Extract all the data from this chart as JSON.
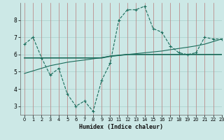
{
  "xlabel": "Humidex (Indice chaleur)",
  "background_color": "#cce8e6",
  "line_color": "#1a6b5a",
  "grid_color": "#aacfcc",
  "xlim": [
    -0.5,
    23
  ],
  "ylim": [
    2.5,
    9.0
  ],
  "xticks": [
    0,
    1,
    2,
    3,
    4,
    5,
    6,
    7,
    8,
    9,
    10,
    11,
    12,
    13,
    14,
    15,
    16,
    17,
    18,
    19,
    20,
    21,
    22,
    23
  ],
  "yticks": [
    3,
    4,
    5,
    6,
    7,
    8
  ],
  "series1_x": [
    0,
    1,
    2,
    3,
    4,
    5,
    6,
    7,
    8,
    9,
    10,
    11,
    12,
    13,
    14,
    15,
    16,
    17,
    18,
    19,
    20,
    21,
    22,
    23
  ],
  "series1_y": [
    6.6,
    7.0,
    5.8,
    4.8,
    5.2,
    3.7,
    3.0,
    3.3,
    2.7,
    4.5,
    5.5,
    8.0,
    8.6,
    8.6,
    8.8,
    7.5,
    7.3,
    6.5,
    6.1,
    6.0,
    6.1,
    7.0,
    6.9,
    6.9
  ],
  "series2_x": [
    0,
    2,
    9,
    10,
    11,
    12,
    13,
    14,
    15,
    16,
    17,
    18,
    19,
    20,
    21,
    22,
    23
  ],
  "series2_y": [
    5.8,
    5.8,
    5.8,
    5.9,
    5.95,
    6.0,
    6.0,
    6.0,
    6.0,
    6.0,
    6.0,
    6.0,
    6.0,
    6.0,
    6.0,
    6.0,
    6.0
  ],
  "series3_x": [
    0,
    1,
    2,
    3,
    4,
    5,
    6,
    7,
    8,
    9,
    10,
    11,
    12,
    13,
    14,
    15,
    16,
    17,
    18,
    19,
    20,
    21,
    22,
    23
  ],
  "series3_y": [
    4.9,
    5.05,
    5.2,
    5.35,
    5.45,
    5.55,
    5.62,
    5.68,
    5.75,
    5.82,
    5.9,
    5.95,
    6.0,
    6.05,
    6.1,
    6.15,
    6.2,
    6.28,
    6.35,
    6.42,
    6.5,
    6.6,
    6.75,
    6.9
  ]
}
